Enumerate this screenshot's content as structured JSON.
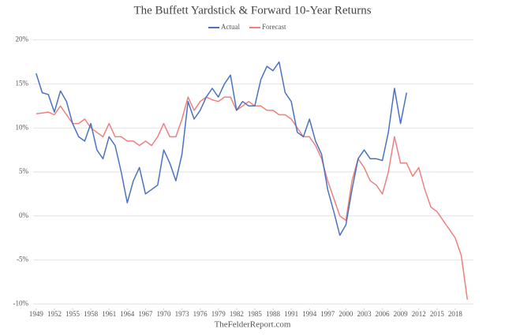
{
  "chart_data": {
    "type": "line",
    "title": "The Buffett Yardstick & Forward 10-Year Returns",
    "source": "TheFelderReport.com",
    "x": [
      1949,
      1950,
      1951,
      1952,
      1953,
      1954,
      1955,
      1956,
      1957,
      1958,
      1959,
      1960,
      1961,
      1962,
      1963,
      1964,
      1965,
      1966,
      1967,
      1968,
      1969,
      1970,
      1971,
      1972,
      1973,
      1974,
      1975,
      1976,
      1977,
      1978,
      1979,
      1980,
      1981,
      1982,
      1983,
      1984,
      1985,
      1986,
      1987,
      1988,
      1989,
      1990,
      1991,
      1992,
      1993,
      1994,
      1995,
      1996,
      1997,
      1998,
      1999,
      2000,
      2001,
      2002,
      2003,
      2004,
      2005,
      2006,
      2007,
      2008,
      2009,
      2010,
      2011,
      2012,
      2013,
      2014,
      2015,
      2016,
      2017,
      2018,
      2019,
      2020
    ],
    "series": [
      {
        "name": "Actual",
        "color": "#4a72c0",
        "values": [
          16.2,
          14,
          13.8,
          11.8,
          14.2,
          13,
          10.5,
          9,
          8.5,
          10.5,
          7.5,
          6.5,
          9,
          8,
          5,
          1.5,
          4,
          5.5,
          2.5,
          3,
          3.5,
          7.5,
          6,
          4,
          7,
          13,
          11,
          12,
          13.5,
          14.5,
          13.5,
          15,
          16,
          12,
          13,
          12.5,
          12.5,
          15.5,
          17,
          16.5,
          17.5,
          14,
          13,
          9.5,
          9,
          11,
          8.5,
          7,
          3,
          0.5,
          -2.2,
          -1,
          3,
          6.5,
          7.5,
          6.5,
          6.5,
          6.3,
          9.5,
          14.5,
          10.5,
          14,
          null,
          null,
          null,
          null,
          null,
          null,
          null,
          null,
          null,
          null
        ]
      },
      {
        "name": "Forecast",
        "color": "#ef8080",
        "values": [
          11.6,
          11.7,
          11.8,
          11.5,
          12.5,
          11.5,
          10.5,
          10.5,
          11,
          10,
          9.5,
          9,
          10.5,
          9,
          9,
          8.5,
          8.5,
          8,
          8.5,
          8,
          9,
          10.5,
          9,
          9,
          11,
          13.5,
          12,
          13,
          13.5,
          13.2,
          13,
          13.5,
          13.5,
          12,
          12.5,
          13,
          12.5,
          12.5,
          12,
          12,
          11.5,
          11.5,
          11,
          10,
          9,
          9,
          8,
          6.5,
          4,
          2,
          0,
          -0.5,
          4,
          6.5,
          5.5,
          4,
          3.5,
          2.5,
          5,
          9,
          6,
          6,
          4.5,
          5.5,
          3,
          1,
          0.5,
          -0.5,
          -1.5,
          -2.5,
          -4.5,
          -9.5
        ]
      }
    ],
    "xlim": [
      1948.5,
      2021
    ],
    "xticks": [
      1949,
      1952,
      1955,
      1958,
      1961,
      1964,
      1967,
      1970,
      1973,
      1976,
      1979,
      1982,
      1985,
      1988,
      1991,
      1994,
      1997,
      2000,
      2003,
      2006,
      2009,
      2012,
      2015,
      2018
    ],
    "ylim": [
      -10.5,
      20.5
    ],
    "yticks": [
      {
        "value": -10,
        "label": "-10%"
      },
      {
        "value": -5,
        "label": "-5%"
      },
      {
        "value": 0,
        "label": "0%"
      },
      {
        "value": 5,
        "label": "5%"
      },
      {
        "value": 10,
        "label": "10%"
      },
      {
        "value": 15,
        "label": "15%"
      },
      {
        "value": 20,
        "label": "20%"
      }
    ],
    "grid": true
  }
}
